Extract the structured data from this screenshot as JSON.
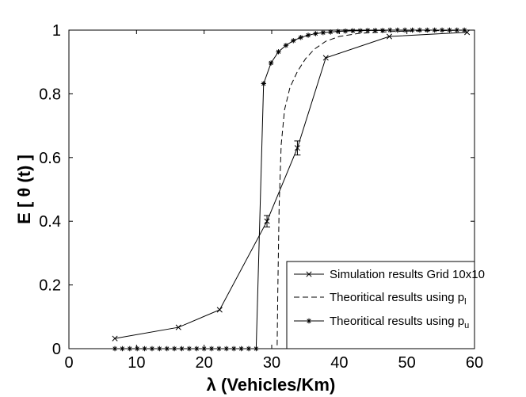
{
  "chart_data": {
    "type": "line",
    "xlabel": "λ (Vehicles/Km)",
    "ylabel": "E [ θ (t) ]",
    "xlim": [
      0,
      60
    ],
    "ylim": [
      0,
      1
    ],
    "xticks": [
      "0",
      "10",
      "20",
      "30",
      "40",
      "50",
      "60"
    ],
    "yticks": [
      "0",
      "0.2",
      "0.4",
      "0.6",
      "0.8",
      "1"
    ],
    "grid": false,
    "legend_position": "bottom-right",
    "series": [
      {
        "name": "Simulation results Grid 10x10",
        "line_style": "solid",
        "marker": "x",
        "x": [
          6.8,
          16.2,
          22.3,
          29.3,
          33.8,
          38.0,
          47.4,
          58.9
        ],
        "y": [
          0.032,
          0.067,
          0.122,
          0.4,
          0.63,
          0.913,
          0.98,
          0.993
        ],
        "error": [
          0,
          0,
          0,
          0.018,
          0.022,
          0,
          0,
          0
        ]
      },
      {
        "name_parts": [
          "Theoritical results using p",
          "l"
        ],
        "line_style": "dashed",
        "marker": "none",
        "x": [
          6.8,
          30.8,
          30.9,
          31.1,
          31.4,
          31.9,
          32.7,
          33.8,
          35.0,
          36.3,
          38.0,
          40.0,
          43.0,
          48.0,
          53.0,
          59.0
        ],
        "y": [
          0,
          0,
          0.18,
          0.45,
          0.64,
          0.75,
          0.82,
          0.87,
          0.91,
          0.94,
          0.965,
          0.98,
          0.99,
          0.996,
          0.998,
          1.0
        ]
      },
      {
        "name_parts": [
          "Theoritical results using p",
          "u"
        ],
        "line_style": "solid",
        "marker": "*",
        "x": [
          6.8,
          7.9,
          9.0,
          10.1,
          11.2,
          12.3,
          13.4,
          14.5,
          15.6,
          16.7,
          17.8,
          18.9,
          20.0,
          21.1,
          22.2,
          23.3,
          24.4,
          25.5,
          26.6,
          27.7,
          28.8,
          29.9,
          31.0,
          32.1,
          33.2,
          34.3,
          35.4,
          36.5,
          37.6,
          38.7,
          39.8,
          40.9,
          42.0,
          43.1,
          44.2,
          45.3,
          46.4,
          47.5,
          48.6,
          49.7,
          50.8,
          51.9,
          53.0,
          54.1,
          55.2,
          56.3,
          57.4,
          58.5
        ],
        "y": [
          0,
          0,
          0,
          0,
          0,
          0,
          0,
          0,
          0,
          0,
          0,
          0,
          0,
          0,
          0,
          0,
          0,
          0,
          0,
          0,
          0.832,
          0.897,
          0.932,
          0.952,
          0.967,
          0.977,
          0.984,
          0.989,
          0.992,
          0.994,
          0.996,
          0.997,
          0.998,
          0.998,
          0.999,
          0.999,
          0.999,
          1.0,
          1.0,
          1.0,
          1.0,
          1.0,
          1.0,
          1.0,
          1.0,
          1.0,
          1.0,
          1.0
        ]
      }
    ]
  }
}
